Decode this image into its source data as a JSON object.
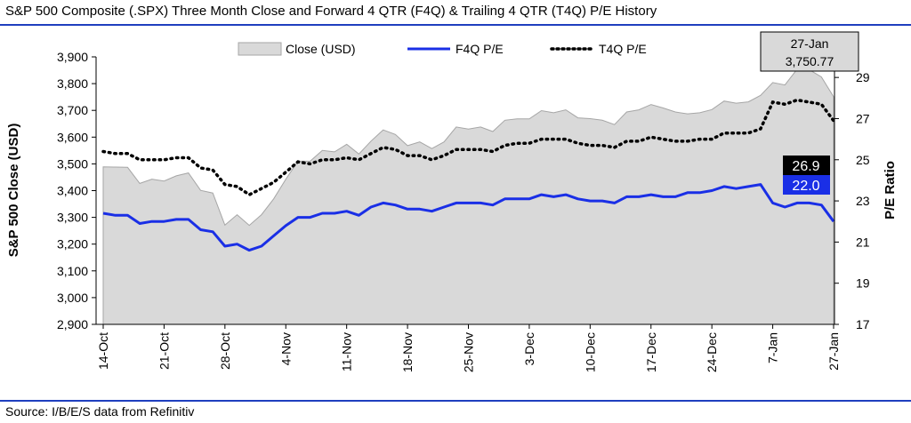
{
  "title": "S&P 500 Composite (.SPX) Three Month Close and Forward 4 QTR (F4Q) & Trailing 4 QTR (T4Q) P/E History",
  "source": "Source: I/B/E/S data from Refinitiv",
  "colors": {
    "close_fill": "#d9d9d9",
    "close_stroke": "#a6a6a6",
    "f4q": "#1a2fe6",
    "t4q": "#000000",
    "rule": "#1f3fbf"
  },
  "chart_data": {
    "type": "area",
    "ylabel": "S&P 500 Close (USD)",
    "y2label": "P/E Ratio",
    "ylim": [
      2900,
      3900
    ],
    "y2lim": [
      17,
      30
    ],
    "yticks": [
      "2,900",
      "3,000",
      "3,100",
      "3,200",
      "3,300",
      "3,400",
      "3,500",
      "3,600",
      "3,700",
      "3,800",
      "3,900"
    ],
    "y2ticks": [
      "17",
      "19",
      "21",
      "23",
      "25",
      "27",
      "29"
    ],
    "xticks": [
      "14-Oct",
      "21-Oct",
      "28-Oct",
      "4-Nov",
      "11-Nov",
      "18-Nov",
      "25-Nov",
      "3-Dec",
      "10-Dec",
      "17-Dec",
      "24-Dec",
      "7-Jan",
      "27-Jan"
    ],
    "legend": {
      "position": "top",
      "items": [
        "Close (USD)",
        "F4Q P/E",
        "T4Q P/E"
      ]
    },
    "series": [
      {
        "name": "Close (USD)",
        "axis": "left",
        "values": [
          3489,
          3488,
          3487,
          3427,
          3443,
          3436,
          3455,
          3466,
          3401,
          3391,
          3271,
          3310,
          3270,
          3310,
          3369,
          3443,
          3510,
          3510,
          3550,
          3545,
          3573,
          3537,
          3585,
          3627,
          3610,
          3568,
          3582,
          3557,
          3582,
          3638,
          3630,
          3638,
          3621,
          3663,
          3668,
          3668,
          3699,
          3691,
          3702,
          3672,
          3669,
          3663,
          3647,
          3694,
          3702,
          3722,
          3709,
          3694,
          3687,
          3691,
          3703,
          3735,
          3727,
          3732,
          3756,
          3804,
          3795,
          3854,
          3852,
          3825,
          3750.77
        ]
      },
      {
        "name": "F4Q P/E",
        "axis": "right",
        "values": [
          22.4,
          22.3,
          22.3,
          21.9,
          22.0,
          22.0,
          22.1,
          22.1,
          21.6,
          21.5,
          20.8,
          20.9,
          20.6,
          20.8,
          21.3,
          21.8,
          22.2,
          22.2,
          22.4,
          22.4,
          22.5,
          22.3,
          22.7,
          22.9,
          22.8,
          22.6,
          22.6,
          22.5,
          22.7,
          22.9,
          22.9,
          22.9,
          22.8,
          23.1,
          23.1,
          23.1,
          23.3,
          23.2,
          23.3,
          23.1,
          23.0,
          23.0,
          22.9,
          23.2,
          23.2,
          23.3,
          23.2,
          23.2,
          23.4,
          23.4,
          23.5,
          23.7,
          23.6,
          23.7,
          23.8,
          22.9,
          22.7,
          22.9,
          22.9,
          22.8,
          22.0
        ]
      },
      {
        "name": "T4Q P/E",
        "axis": "right",
        "values": [
          25.4,
          25.3,
          25.3,
          25.0,
          25.0,
          25.0,
          25.1,
          25.1,
          24.6,
          24.5,
          23.8,
          23.7,
          23.3,
          23.6,
          23.9,
          24.4,
          24.9,
          24.8,
          25.0,
          25.0,
          25.1,
          25.0,
          25.3,
          25.6,
          25.5,
          25.2,
          25.2,
          25.0,
          25.2,
          25.5,
          25.5,
          25.5,
          25.4,
          25.7,
          25.8,
          25.8,
          26.0,
          26.0,
          26.0,
          25.8,
          25.7,
          25.7,
          25.6,
          25.9,
          25.9,
          26.1,
          26.0,
          25.9,
          25.9,
          26.0,
          26.0,
          26.3,
          26.3,
          26.3,
          26.5,
          27.8,
          27.7,
          27.9,
          27.8,
          27.7,
          26.9
        ]
      }
    ],
    "annotations": {
      "date": "27-Jan",
      "close": "3,750.77",
      "t4q": "26.9",
      "f4q": "22.0"
    }
  }
}
